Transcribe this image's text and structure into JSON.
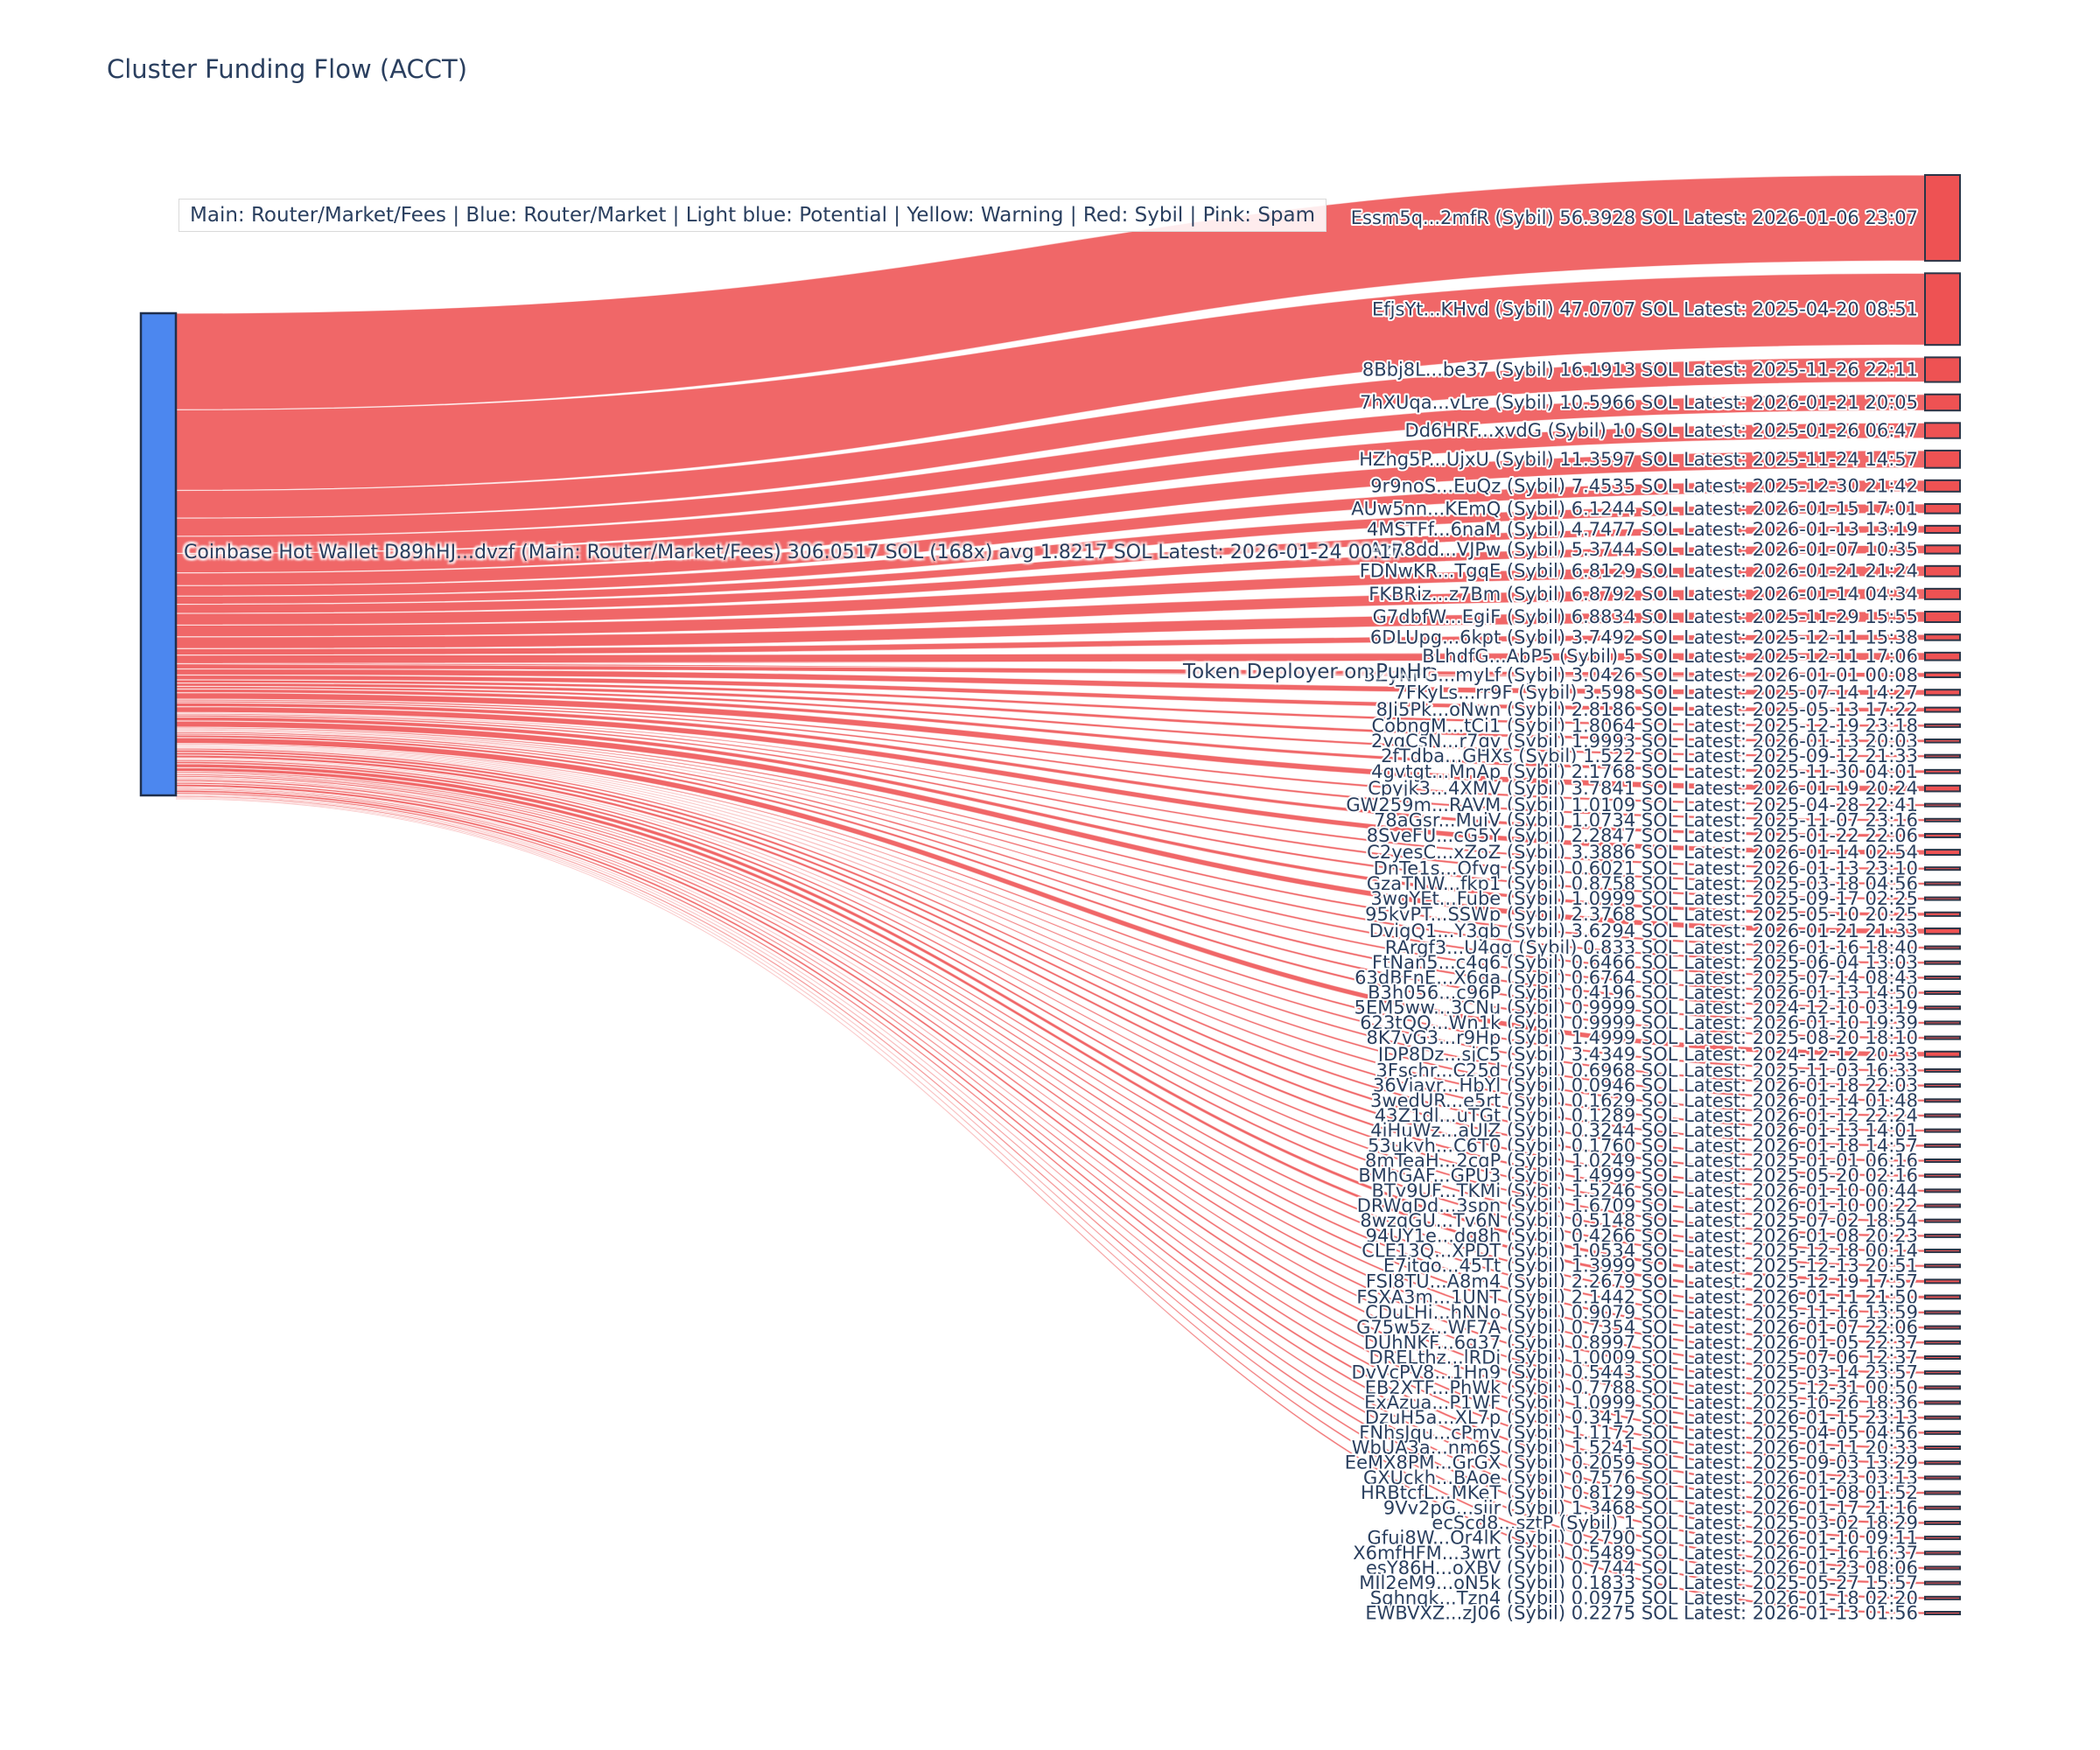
{
  "chart_data": {
    "type": "sankey",
    "title": "Cluster Funding Flow (ACCT)",
    "legend_text": "Main: Router/Market/Fees  |  Blue: Router/Market | Light blue: Potential | Yellow: Warning | Red: Sybil | Pink: Spam",
    "layout_hints": {
      "orientation": "horizontal",
      "source_column": "left",
      "targets_column": "right",
      "legend_position": "top"
    },
    "colors": {
      "title_text": "#2a3f5f",
      "label_text": "#2a3f5f",
      "source_node_fill": "#4c87ef",
      "source_node_border": "#1f2f4d",
      "target_node_fill": "#ee5253",
      "target_node_border": "#2b3648",
      "flow_fill": "rgba(238,82,83,0.88)",
      "flow_separator": "rgba(255,255,255,0.65)",
      "background": "#ffffff"
    },
    "source": {
      "name": "Coinbase Hot Wallet",
      "address": "D89hHJ...dvzf",
      "category": "Main: Router/Market/Fees",
      "total_sol": "306.0517",
      "tx_count": "168x",
      "avg_sol": "1.8217",
      "latest": "2026-01-24 00:17",
      "label": "Coinbase Hot Wallet  D89hHJ...dvzf (Main: Router/Market/Fees) 306.0517 SOL (168x) avg 1.8217 SOL Latest: 2026-01-24 00:17"
    },
    "middle_node": {
      "label": "Token Deployer on Pu.Hr"
    },
    "target_tag": "Sybil",
    "targets": [
      {
        "address": "Essm5q...2mfR",
        "amount_sol": "56.3928",
        "latest": "2026-01-06 23:07"
      },
      {
        "address": "EfjsYt...KHvd",
        "amount_sol": "47.0707",
        "latest": "2025-04-20 08:51"
      },
      {
        "address": "8Bbj8L...be37",
        "amount_sol": "16.1913",
        "latest": "2025-11-26 22:11"
      },
      {
        "address": "7hXUqa...vLre",
        "amount_sol": "10.5966",
        "latest": "2026-01-21 20:05"
      },
      {
        "address": "Dd6HRF...xvdG",
        "amount_sol": "10",
        "latest": "2025-01-26 06:47"
      },
      {
        "address": "HZhg5P...UjxU",
        "amount_sol": "11.3597",
        "latest": "2025-11-24 14:57"
      },
      {
        "address": "9r9noS...EuQz",
        "amount_sol": "7.4535",
        "latest": "2025-12-30 21:42"
      },
      {
        "address": "AUw5nn...KEmQ",
        "amount_sol": "6.1244",
        "latest": "2026-01-15 17:01"
      },
      {
        "address": "4MSTFf...6naM",
        "amount_sol": "4.7477",
        "latest": "2026-01-13 13:19"
      },
      {
        "address": "AzR8dd...VJPw",
        "amount_sol": "5.3744",
        "latest": "2026-01-07 10:35"
      },
      {
        "address": "FDNwKR...TgqE",
        "amount_sol": "6.8129",
        "latest": "2026-01-21 21:24"
      },
      {
        "address": "FKBRiz...z7Bm",
        "amount_sol": "6.8792",
        "latest": "2026-01-14 04:34"
      },
      {
        "address": "G7dbfW...EgiF",
        "amount_sol": "6.8834",
        "latest": "2025-11-29 15:55"
      },
      {
        "address": "6DLUpg...6kpt",
        "amount_sol": "3.7492",
        "latest": "2025-12-11 15:38"
      },
      {
        "address": "BLhdfG...AbP5",
        "amount_sol": "5",
        "latest": "2025-12-11 17:06"
      },
      {
        "address": "3ZyNPG...myLf",
        "amount_sol": "3.0426",
        "latest": "2026-01-01 00:08"
      },
      {
        "address": "7FKyLs...rr9F",
        "amount_sol": "3.598",
        "latest": "2025-07-14 14:27"
      },
      {
        "address": "8Ji5Pk...oNwn",
        "amount_sol": "2.8186",
        "latest": "2025-05-13 17:22"
      },
      {
        "address": "CobngM...tCi1",
        "amount_sol": "1.8064",
        "latest": "2025-12-19 23:18"
      },
      {
        "address": "2yqCsN...r7gv",
        "amount_sol": "1.9993",
        "latest": "2026-01-13 20:03"
      },
      {
        "address": "2fTdba...GHXs",
        "amount_sol": "1.522",
        "latest": "2025-09-12 21:33"
      },
      {
        "address": "4gvtgt...MnAp",
        "amount_sol": "2.1768",
        "latest": "2025-11-30 04:01"
      },
      {
        "address": "Cpyjk3...4XMV",
        "amount_sol": "3.7841",
        "latest": "2026-01-19 20:24"
      },
      {
        "address": "GW259m...RAVM",
        "amount_sol": "1.0109",
        "latest": "2025-04-28 22:41"
      },
      {
        "address": "78aGsr...MuiV",
        "amount_sol": "1.0734",
        "latest": "2025-11-07 23:16"
      },
      {
        "address": "8SveFU...cG5Y",
        "amount_sol": "2.2847",
        "latest": "2025-01-22 22:06"
      },
      {
        "address": "C2yesC...xZoZ",
        "amount_sol": "3.3886",
        "latest": "2026-01-14 02:54"
      },
      {
        "address": "DnTe1s...Qfvq",
        "amount_sol": "0.6021",
        "latest": "2026-01-13 23:10"
      },
      {
        "address": "GzaTNW...fkp1",
        "amount_sol": "0.8758",
        "latest": "2025-03-18 04:56"
      },
      {
        "address": "3wgYEt...Fube",
        "amount_sol": "1.0999",
        "latest": "2025-09-17 02:25"
      },
      {
        "address": "95kvPT...SSWp",
        "amount_sol": "2.3768",
        "latest": "2025-05-10 20:25"
      },
      {
        "address": "DvigQ1...Y3gb",
        "amount_sol": "3.6294",
        "latest": "2026-01-21 21:33"
      },
      {
        "address": "RArgf3...U4qg",
        "amount_sol": "0.833",
        "latest": "2026-01-16 18:40"
      },
      {
        "address": "FtNan5...c4q6",
        "amount_sol": "0.6466",
        "latest": "2025-06-04 13:03"
      },
      {
        "address": "63dBFnE...X6ga",
        "amount_sol": "0.6764",
        "latest": "2025-07-14 08:43"
      },
      {
        "address": "B3h056...c96P",
        "amount_sol": "0.4196",
        "latest": "2026-01-13 14:50"
      },
      {
        "address": "5EM5ww...3CNu",
        "amount_sol": "0.9999",
        "latest": "2024-12-10 03:19"
      },
      {
        "address": "623tQQ...Wn1k",
        "amount_sol": "0.9999",
        "latest": "2026-01-10 19:39"
      },
      {
        "address": "8K7vG3...r9Hp",
        "amount_sol": "1.4999",
        "latest": "2025-08-20 18:10"
      },
      {
        "address": "JDP8Dz...sjC5",
        "amount_sol": "3.4349",
        "latest": "2024-12-12 20:33"
      },
      {
        "address": "3Fschr...C25d",
        "amount_sol": "0.6968",
        "latest": "2025-11-03 16:33"
      },
      {
        "address": "36Viavr...HbYl",
        "amount_sol": "0.0946",
        "latest": "2026-01-18 22:03"
      },
      {
        "address": "3wedUR...e5rt",
        "amount_sol": "0.1629",
        "latest": "2026-01-14 01:48"
      },
      {
        "address": "43Z1dl...uTGt",
        "amount_sol": "0.1289",
        "latest": "2026-01-12 22:24"
      },
      {
        "address": "4jHuWz...aUJZ",
        "amount_sol": "0.3244",
        "latest": "2026-01-13 14:01"
      },
      {
        "address": "53ukvh...C6T0",
        "amount_sol": "0.1760",
        "latest": "2026-01-18 14:57"
      },
      {
        "address": "8mTeaH...2cqP",
        "amount_sol": "1.0249",
        "latest": "2025-01-01 06:16"
      },
      {
        "address": "BMhGAF...GPU3",
        "amount_sol": "1.4999",
        "latest": "2025-05-20 02:16"
      },
      {
        "address": "BTv9UF...TKMi",
        "amount_sol": "1.5246",
        "latest": "2026-01-10 00:44"
      },
      {
        "address": "DRWqDd...3spn",
        "amount_sol": "1.6709",
        "latest": "2026-01-10 00:22"
      },
      {
        "address": "8wzqGU...Tv6N",
        "amount_sol": "0.5148",
        "latest": "2025-07-02 18:54"
      },
      {
        "address": "94UY1e...dq8h",
        "amount_sol": "0.4266",
        "latest": "2026-01-08 20:23"
      },
      {
        "address": "CLE13Q...XPDT",
        "amount_sol": "1.0534",
        "latest": "2025-12-18 00:14"
      },
      {
        "address": "E7itqo...45Tt",
        "amount_sol": "1.3999",
        "latest": "2025-12-13 20:51"
      },
      {
        "address": "FSI8TU...A8m4",
        "amount_sol": "2.2679",
        "latest": "2025-12-19 17:57"
      },
      {
        "address": "FSXA3m...1UNT",
        "amount_sol": "2.1442",
        "latest": "2026-01-11 21:50"
      },
      {
        "address": "CDuLHi...hNNo",
        "amount_sol": "0.9079",
        "latest": "2025-11-16 13:59"
      },
      {
        "address": "G75w5z...WF7A",
        "amount_sol": "0.7354",
        "latest": "2026-01-07 22:06"
      },
      {
        "address": "DUhNKF...6g37",
        "amount_sol": "0.8997",
        "latest": "2026-01-05 22:37"
      },
      {
        "address": "DRELthz...lRDj",
        "amount_sol": "1.0009",
        "latest": "2025-07-06 12:37"
      },
      {
        "address": "DvVcPV8...1Hn9",
        "amount_sol": "0.5443",
        "latest": "2025-03-14 23:57"
      },
      {
        "address": "EB2XTF...PhWk",
        "amount_sol": "0.7788",
        "latest": "2025-12-31 00:50"
      },
      {
        "address": "ExAzua...P1WF",
        "amount_sol": "1.0999",
        "latest": "2025-10-26 18:36"
      },
      {
        "address": "DzuH5a...XL7p",
        "amount_sol": "0.3417",
        "latest": "2026-01-15 23:13"
      },
      {
        "address": "FNhsJqu...cPmy",
        "amount_sol": "1.1172",
        "latest": "2025-04-05 04:56"
      },
      {
        "address": "WbUA3a...nm6S",
        "amount_sol": "1.5241",
        "latest": "2026-01-11 20:33"
      },
      {
        "address": "EeMX8PM...GrGX",
        "amount_sol": "0.2059",
        "latest": "2025-09-03 13:29"
      },
      {
        "address": "GXUckh...BAoe",
        "amount_sol": "0.7576",
        "latest": "2026-01-23 03:13"
      },
      {
        "address": "HRBtcfL...MKeT",
        "amount_sol": "0.8129",
        "latest": "2026-01-08 01:52"
      },
      {
        "address": "9Vv2pG...sjir",
        "amount_sol": "1.3468",
        "latest": "2026-01-17 21:16"
      },
      {
        "address": "ecScd8...sztP",
        "amount_sol": "1",
        "latest": "2025-03-02 18:29"
      },
      {
        "address": "Gfui8W...Or4lK",
        "amount_sol": "0.2790",
        "latest": "2026-01-10 09:11"
      },
      {
        "address": "X6mfHFM...3wrt",
        "amount_sol": "0.5489",
        "latest": "2026-01-16 16:37"
      },
      {
        "address": "esY86H...oXBV",
        "amount_sol": "0.7744",
        "latest": "2026-01-23 08:06"
      },
      {
        "address": "MJl2eM9...oN5k",
        "amount_sol": "0.1833",
        "latest": "2025-05-27 15:57"
      },
      {
        "address": "Sqhnqk...Tzn4",
        "amount_sol": "0.0975",
        "latest": "2026-01-18 02:20"
      },
      {
        "address": "EWBVXZ...zJ06",
        "amount_sol": "0.2275",
        "latest": "2026-01-13 01:56"
      }
    ]
  }
}
